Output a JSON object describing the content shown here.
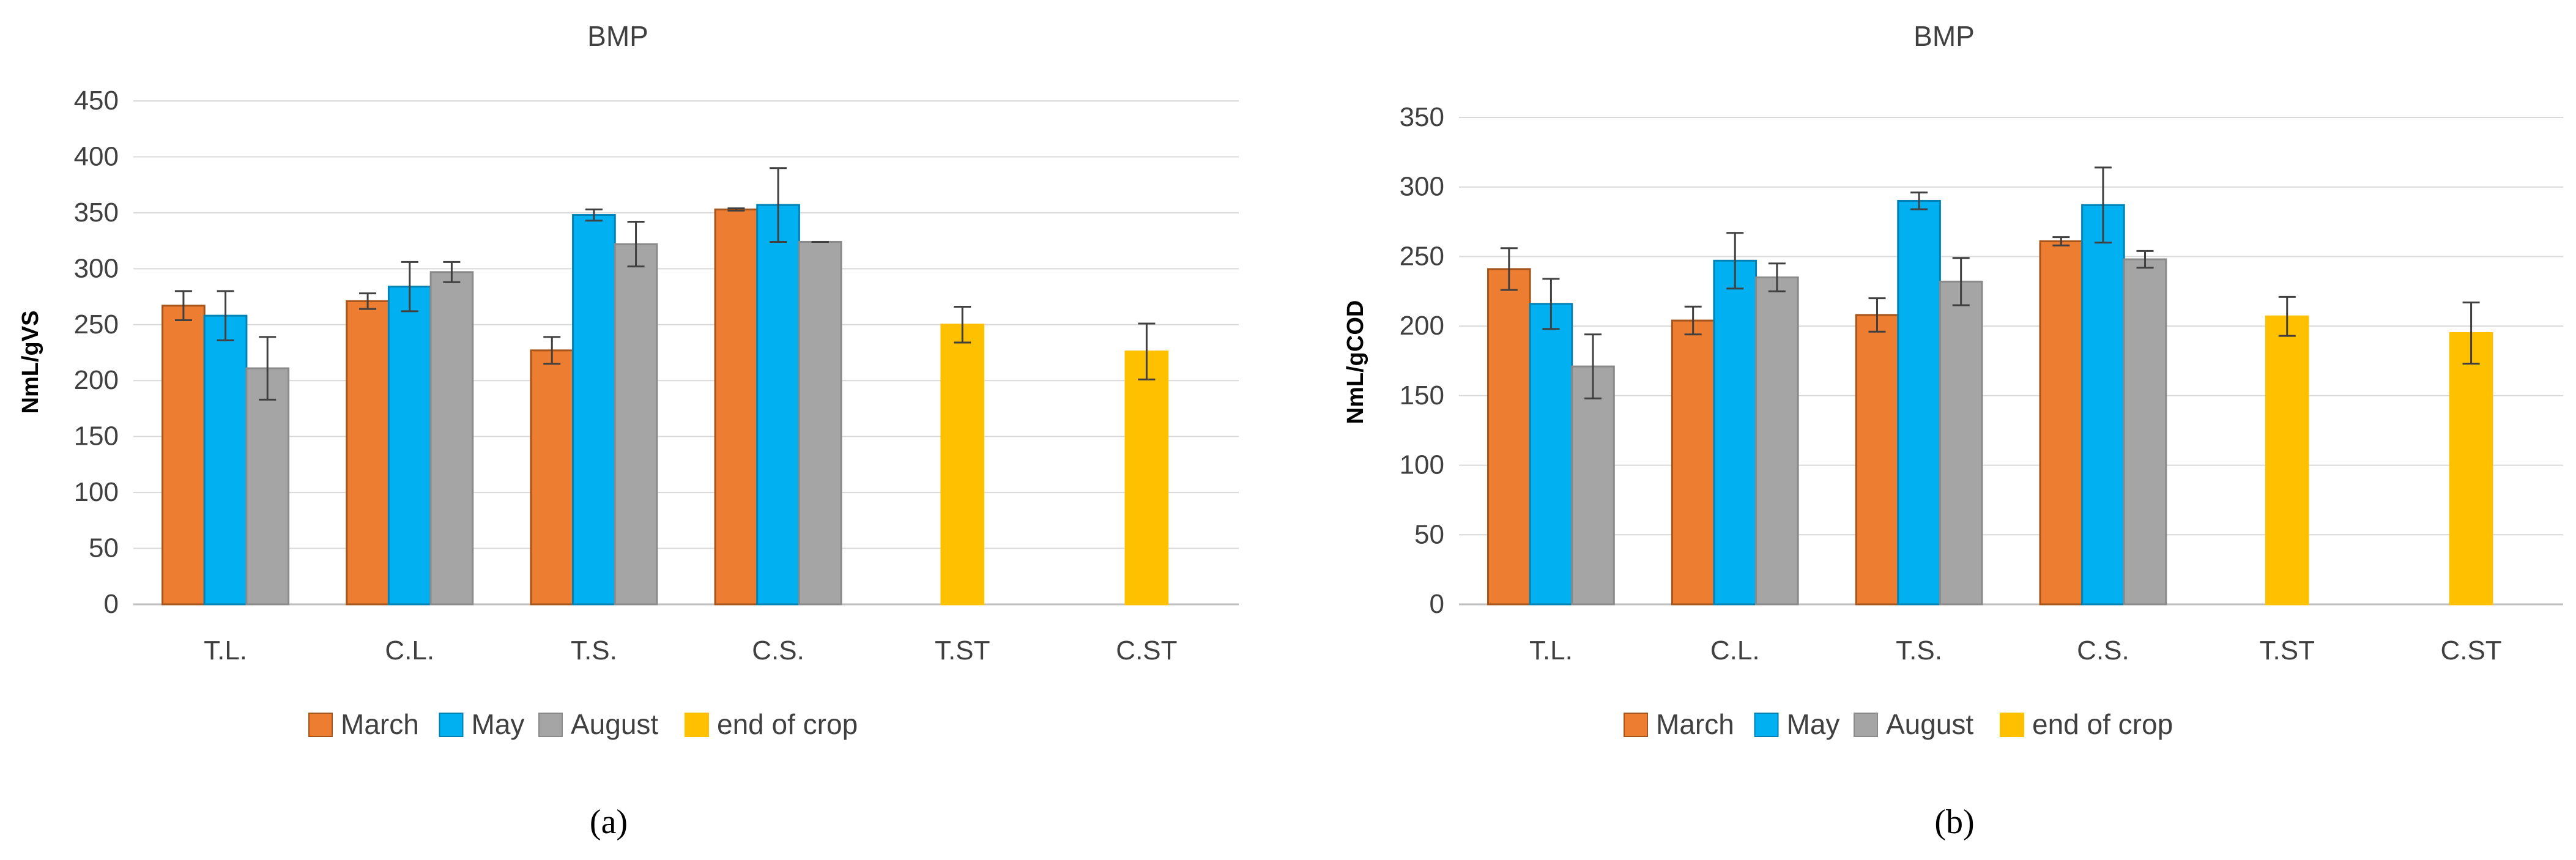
{
  "figure": {
    "subcaptions": [
      "(a)",
      "(b)"
    ]
  },
  "chart_data": [
    {
      "type": "bar",
      "title": "BMP",
      "xlabel": "",
      "ylabel": "NmL/gVS",
      "ylim": [
        0,
        450
      ],
      "yticks": [
        0,
        50,
        100,
        150,
        200,
        250,
        300,
        350,
        400,
        450
      ],
      "grid": true,
      "legend_position": "bottom",
      "categories": [
        "T.L.",
        "C.L.",
        "T.S.",
        "C.S.",
        "T.ST",
        "C.ST"
      ],
      "series": [
        {
          "name": "March",
          "color": "#ED7D31",
          "edge": "#A5541B",
          "values": [
            267,
            271,
            227,
            353,
            null,
            null
          ],
          "errors": [
            13,
            7,
            12,
            1,
            null,
            null
          ]
        },
        {
          "name": "May",
          "color": "#00B0F0",
          "edge": "#0082B4",
          "values": [
            258,
            284,
            348,
            357,
            null,
            null
          ],
          "errors": [
            22,
            22,
            5,
            33,
            null,
            null
          ]
        },
        {
          "name": "August",
          "color": "#A5A5A5",
          "edge": "#8A8A8A",
          "values": [
            211,
            297,
            322,
            324,
            null,
            null
          ],
          "errors": [
            28,
            9,
            20,
            0,
            null,
            null
          ]
        },
        {
          "name": "end of crop",
          "color": "#FFC000",
          "edge": "#FFC000",
          "values": [
            null,
            null,
            null,
            null,
            250,
            226
          ],
          "errors": [
            null,
            null,
            null,
            null,
            16,
            25
          ]
        }
      ]
    },
    {
      "type": "bar",
      "title": "BMP",
      "xlabel": "",
      "ylabel": "NmL/gCOD",
      "ylim": [
        0,
        350
      ],
      "yticks": [
        0,
        50,
        100,
        150,
        200,
        250,
        300,
        350
      ],
      "grid": true,
      "legend_position": "bottom",
      "categories": [
        "T.L.",
        "C.L.",
        "T.S.",
        "C.S.",
        "T.ST",
        "C.ST"
      ],
      "series": [
        {
          "name": "March",
          "color": "#ED7D31",
          "edge": "#A5541B",
          "values": [
            241,
            204,
            208,
            261,
            null,
            null
          ],
          "errors": [
            15,
            10,
            12,
            3,
            null,
            null
          ]
        },
        {
          "name": "May",
          "color": "#00B0F0",
          "edge": "#0082B4",
          "values": [
            216,
            247,
            290,
            287,
            null,
            null
          ],
          "errors": [
            18,
            20,
            6,
            27,
            null,
            null
          ]
        },
        {
          "name": "August",
          "color": "#A5A5A5",
          "edge": "#8A8A8A",
          "values": [
            171,
            235,
            232,
            248,
            null,
            null
          ],
          "errors": [
            23,
            10,
            17,
            6,
            null,
            null
          ]
        },
        {
          "name": "end of crop",
          "color": "#FFC000",
          "edge": "#FFC000",
          "values": [
            null,
            null,
            null,
            null,
            207,
            195
          ],
          "errors": [
            null,
            null,
            null,
            null,
            14,
            22
          ]
        }
      ]
    }
  ]
}
